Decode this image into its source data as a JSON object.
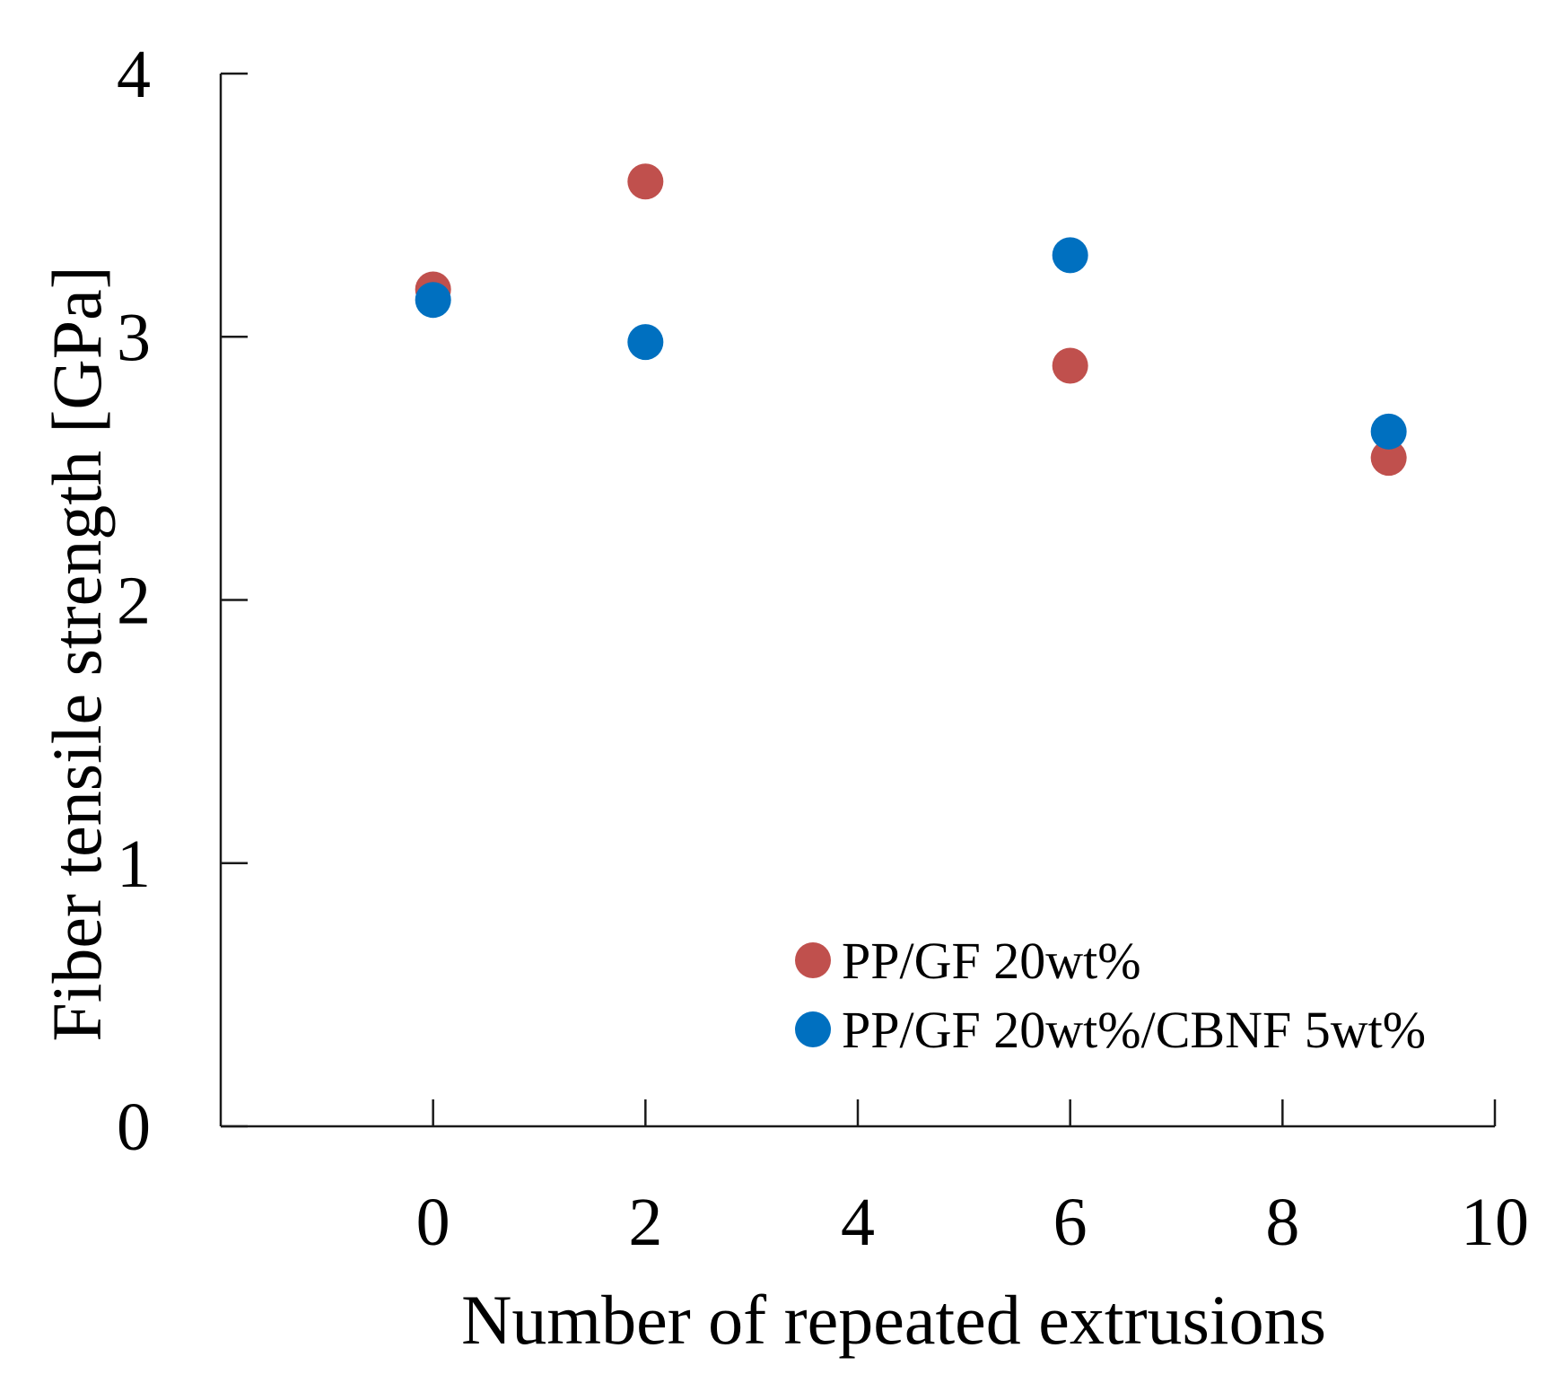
{
  "chart_data": {
    "type": "scatter",
    "title": "",
    "xlabel": "Number of repeated extrusions",
    "ylabel": "Fiber tensile strength [GPa]",
    "xlim": [
      -2,
      10
    ],
    "ylim": [
      0,
      4
    ],
    "xticks": [
      0,
      2,
      4,
      6,
      8,
      10
    ],
    "yticks": [
      0,
      1,
      2,
      3,
      4
    ],
    "grid": false,
    "legend_position": "bottom-right",
    "series": [
      {
        "name": "PP/GF 20wt%",
        "color": "#c0504d",
        "points": [
          {
            "x": 0,
            "y": 3.18
          },
          {
            "x": 2,
            "y": 3.59
          },
          {
            "x": 6,
            "y": 2.89
          },
          {
            "x": 9,
            "y": 2.54
          }
        ]
      },
      {
        "name": "PP/GF 20wt%/CBNF 5wt%",
        "color": "#0070c0",
        "points": [
          {
            "x": 0,
            "y": 3.14
          },
          {
            "x": 2,
            "y": 2.98
          },
          {
            "x": 6,
            "y": 3.31
          },
          {
            "x": 9,
            "y": 2.64
          }
        ]
      }
    ]
  }
}
